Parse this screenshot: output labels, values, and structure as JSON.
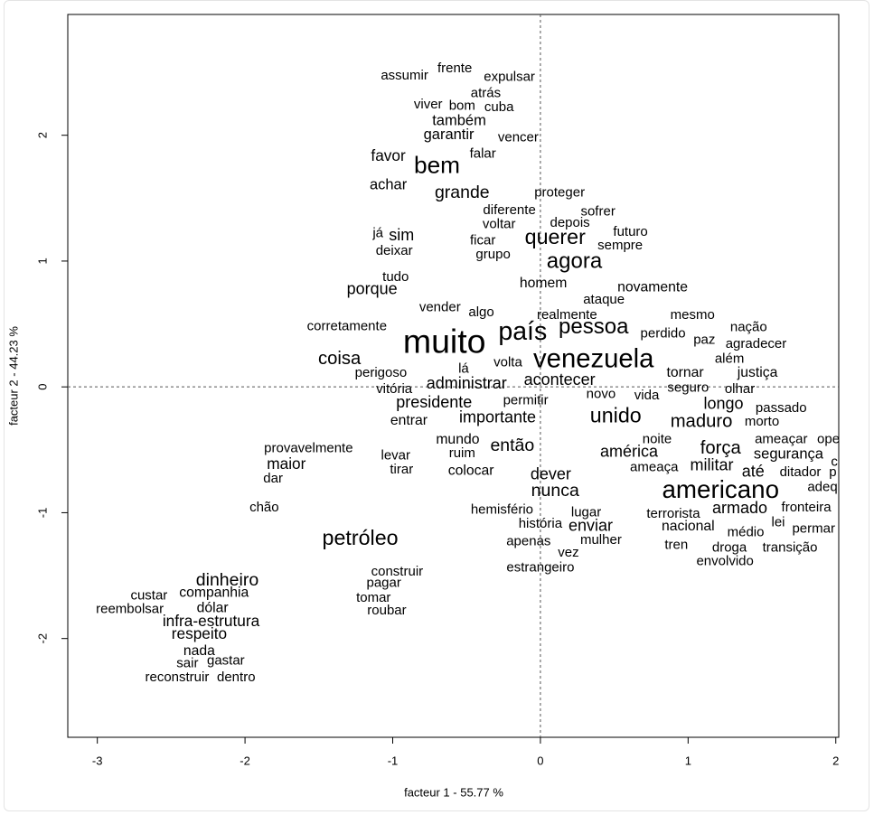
{
  "chart_data": {
    "type": "text-scatter",
    "x_label": "facteur  1  - 55.77 %",
    "y_label": "facteur  2  - 44.23 %",
    "xlim": [
      -3.2,
      2.02
    ],
    "ylim": [
      -2.785,
      2.96
    ],
    "xticks": [
      -3,
      -2,
      -1,
      0,
      1,
      2
    ],
    "yticks": [
      -2,
      -1,
      0,
      1,
      2
    ],
    "reference_lines": true,
    "series": [
      {
        "color": "#0a0ad0",
        "labels": [
          "assumir",
          "frente",
          "expulsar",
          "atrás",
          "viver",
          "bom",
          "cuba",
          "também",
          "garantir",
          "vencer",
          "falar",
          "favor",
          "bem",
          "achar",
          "grande",
          "proteger",
          "diferente",
          "sofrer",
          "voltar",
          "depois",
          "futuro",
          "já",
          "sim",
          "ficar",
          "querer",
          "sempre",
          "deixar",
          "grupo",
          "agora",
          "tudo",
          "porque",
          "homem",
          "novamente",
          "ataque",
          "vender",
          "algo",
          "realmente",
          "muito",
          "país",
          "pessoa"
        ],
        "x": [
          -0.92,
          -0.58,
          -0.21,
          -0.37,
          -0.76,
          -0.53,
          -0.28,
          -0.55,
          -0.62,
          -0.15,
          -0.39,
          -1.03,
          -0.7,
          -1.03,
          -0.53,
          0.13,
          -0.21,
          0.39,
          -0.28,
          0.2,
          0.61,
          -1.1,
          -0.94,
          -0.39,
          0.1,
          0.54,
          -0.99,
          -0.32,
          0.23,
          -0.98,
          -1.14,
          0.02,
          0.76,
          0.43,
          -0.68,
          -0.4,
          0.18,
          -0.65,
          -0.12,
          0.36
        ],
        "values": [
          2.47,
          2.53,
          2.46,
          2.33,
          2.24,
          2.23,
          2.22,
          2.11,
          2.0,
          1.98,
          1.85,
          1.83,
          1.75,
          1.6,
          1.54,
          1.54,
          1.4,
          1.39,
          1.29,
          1.3,
          1.23,
          1.22,
          1.2,
          1.16,
          1.18,
          1.12,
          1.08,
          1.05,
          0.99,
          0.87,
          0.77,
          0.82,
          0.79,
          0.69,
          0.63,
          0.59,
          0.57,
          0.34,
          0.43,
          0.47
        ],
        "sizes": [
          1,
          1,
          1,
          1,
          1,
          1,
          1,
          1.1,
          1.1,
          1,
          1,
          1.15,
          1.75,
          1.1,
          1.3,
          1,
          1,
          1,
          1,
          1,
          1,
          1,
          1.2,
          1,
          1.55,
          1,
          1,
          1,
          1.6,
          1,
          1.2,
          1.05,
          1.05,
          1,
          1,
          1,
          1,
          2.5,
          1.9,
          1.6
        ]
      },
      {
        "color": "#e81818",
        "labels": [
          "mesmo",
          "nação",
          "perdido",
          "paz",
          "agradecer",
          "venezuela",
          "além",
          "tornar",
          "justiça",
          "acontecer",
          "seguro",
          "olhar",
          "novo",
          "vida",
          "longo",
          "passado",
          "unido",
          "maduro",
          "morto",
          "noite",
          "ameaçar",
          "ope",
          "força",
          "américa",
          "segurança",
          "c",
          "ameaça",
          "militar",
          "até",
          "ditador",
          "p",
          "adeq",
          "americano",
          "nunca",
          "hemisfério",
          "lugar",
          "terrorista",
          "armado",
          "fronteira",
          "história",
          "enviar",
          "nacional",
          "lei",
          "médio",
          "permar",
          "mulher",
          "tren",
          "droga",
          "transição",
          "vez",
          "estrangeiro",
          "envolvido"
        ],
        "x": [
          1.03,
          1.41,
          0.83,
          1.11,
          1.46,
          0.36,
          1.28,
          0.98,
          1.47,
          0.13,
          1.0,
          1.35,
          0.41,
          0.72,
          1.24,
          1.63,
          0.51,
          1.09,
          1.5,
          0.79,
          1.63,
          1.95,
          1.22,
          0.6,
          1.68,
          1.99,
          0.77,
          1.16,
          1.44,
          1.76,
          1.98,
          1.91,
          1.22,
          0.1,
          -0.26,
          0.31,
          0.9,
          1.35,
          1.8,
          0.0,
          0.34,
          1.0,
          1.61,
          1.39,
          1.85,
          0.41,
          0.92,
          1.28,
          1.69,
          0.19,
          0.0,
          1.25
        ],
        "values": [
          0.57,
          0.47,
          0.42,
          0.37,
          0.34,
          0.21,
          0.22,
          0.11,
          0.11,
          0.05,
          -0.01,
          -0.02,
          -0.06,
          -0.07,
          -0.14,
          -0.17,
          -0.24,
          -0.28,
          -0.28,
          -0.42,
          -0.42,
          -0.42,
          -0.49,
          -0.52,
          -0.54,
          -0.6,
          -0.64,
          -0.63,
          -0.68,
          -0.68,
          -0.68,
          -0.8,
          -0.83,
          -0.83,
          -0.98,
          -1.0,
          -1.01,
          -0.97,
          -0.96,
          -1.09,
          -1.11,
          -1.11,
          -1.08,
          -1.16,
          -1.13,
          -1.22,
          -1.26,
          -1.28,
          -1.28,
          -1.32,
          -1.44,
          -1.39
        ],
        "sizes": [
          1,
          1,
          1,
          1,
          1,
          1.95,
          1,
          1.05,
          1.05,
          1.2,
          1,
          1,
          1,
          1,
          1.2,
          1,
          1.55,
          1.35,
          1,
          1,
          1,
          1,
          1.35,
          1.2,
          1.1,
          1,
          1,
          1.2,
          1.2,
          1,
          1,
          1,
          1.85,
          1.3,
          1,
          1,
          1,
          1.2,
          1,
          1,
          1.2,
          1.05,
          1,
          1,
          1,
          1,
          1,
          1,
          1,
          1,
          1,
          1
        ]
      },
      {
        "color": "#2ed62e",
        "labels": [
          "corretamente",
          "coisa",
          "perigoso",
          "lá",
          "volta",
          "administrar",
          "vitória",
          "presidente",
          "permitir",
          "entrar",
          "importante",
          "mundo",
          "provavelmente",
          "então",
          "levar",
          "ruim",
          "maior",
          "tirar",
          "colocar",
          "dever",
          "dar",
          "chão",
          "petróleo",
          "apenas",
          "construir",
          "dinheiro",
          "pagar",
          "custar",
          "companhia",
          "tomar",
          "reembolsar",
          "dólar",
          "roubar",
          "infra-estrutura",
          "respeito",
          "nada",
          "sair",
          "gastar",
          "reconstruir",
          "dentro"
        ],
        "x": [
          -1.31,
          -1.36,
          -1.08,
          -0.52,
          -0.22,
          -0.5,
          -0.99,
          -0.72,
          -0.1,
          -0.89,
          -0.29,
          -0.56,
          -1.57,
          -0.19,
          -0.98,
          -0.53,
          -1.72,
          -0.94,
          -0.47,
          0.07,
          -1.81,
          -1.87,
          -1.22,
          -0.08,
          -0.97,
          -2.12,
          -1.06,
          -2.65,
          -2.21,
          -1.13,
          -2.78,
          -2.22,
          -1.04,
          -2.23,
          -2.31,
          -2.31,
          -2.39,
          -2.13,
          -2.46,
          -2.06
        ],
        "values": [
          0.48,
          0.22,
          0.11,
          0.14,
          0.19,
          0.02,
          -0.02,
          -0.13,
          -0.11,
          -0.27,
          -0.25,
          -0.42,
          -0.49,
          -0.47,
          -0.55,
          -0.53,
          -0.62,
          -0.66,
          -0.67,
          -0.7,
          -0.73,
          -0.96,
          -1.21,
          -1.23,
          -1.47,
          -1.54,
          -1.56,
          -1.66,
          -1.64,
          -1.68,
          -1.77,
          -1.76,
          -1.78,
          -1.87,
          -1.97,
          -2.1,
          -2.2,
          -2.18,
          -2.31,
          -2.31
        ],
        "sizes": [
          1,
          1.35,
          1,
          1,
          1,
          1.2,
          1,
          1.2,
          1,
          1.05,
          1.2,
          1.05,
          1,
          1.3,
          1,
          1,
          1.15,
          1,
          1.05,
          1.2,
          1,
          1,
          1.55,
          1,
          1,
          1.3,
          1,
          1,
          1.05,
          1,
          1,
          1.05,
          1,
          1.15,
          1.15,
          1.05,
          1,
          1,
          1,
          1
        ]
      }
    ]
  }
}
